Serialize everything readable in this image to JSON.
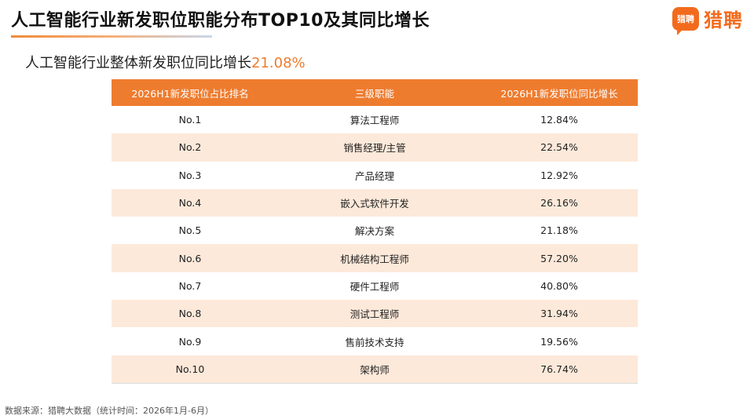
{
  "title": "人工智能行业新发职位职能分布TOP10及其同比增长",
  "brand": {
    "badge_text": "猎聘",
    "name": "猎聘",
    "color": "#f26b1d"
  },
  "subtitle": {
    "text": "人工智能行业整体新发职位同比增长",
    "rate": "21.08%"
  },
  "table": {
    "header_color": "#ee7c2f",
    "headers": [
      "2026H1新发职位占比排名",
      "三级职能",
      "2026H1新发职位同比增长"
    ],
    "rows": [
      {
        "rank": "No.1",
        "function": "算法工程师",
        "growth": "12.84%"
      },
      {
        "rank": "No.2",
        "function": "销售经理/主管",
        "growth": "22.54%"
      },
      {
        "rank": "No.3",
        "function": "产品经理",
        "growth": "12.92%"
      },
      {
        "rank": "No.4",
        "function": "嵌入式软件开发",
        "growth": "26.16%"
      },
      {
        "rank": "No.5",
        "function": "解决方案",
        "growth": "21.18%"
      },
      {
        "rank": "No.6",
        "function": "机械结构工程师",
        "growth": "57.20%"
      },
      {
        "rank": "No.7",
        "function": "硬件工程师",
        "growth": "40.80%"
      },
      {
        "rank": "No.8",
        "function": "测试工程师",
        "growth": "31.94%"
      },
      {
        "rank": "No.9",
        "function": "售前技术支持",
        "growth": "19.56%"
      },
      {
        "rank": "No.10",
        "function": "架构师",
        "growth": "76.74%"
      }
    ]
  },
  "source": "数据来源：猎聘大数据（统计时间：2026年1月-6月）"
}
